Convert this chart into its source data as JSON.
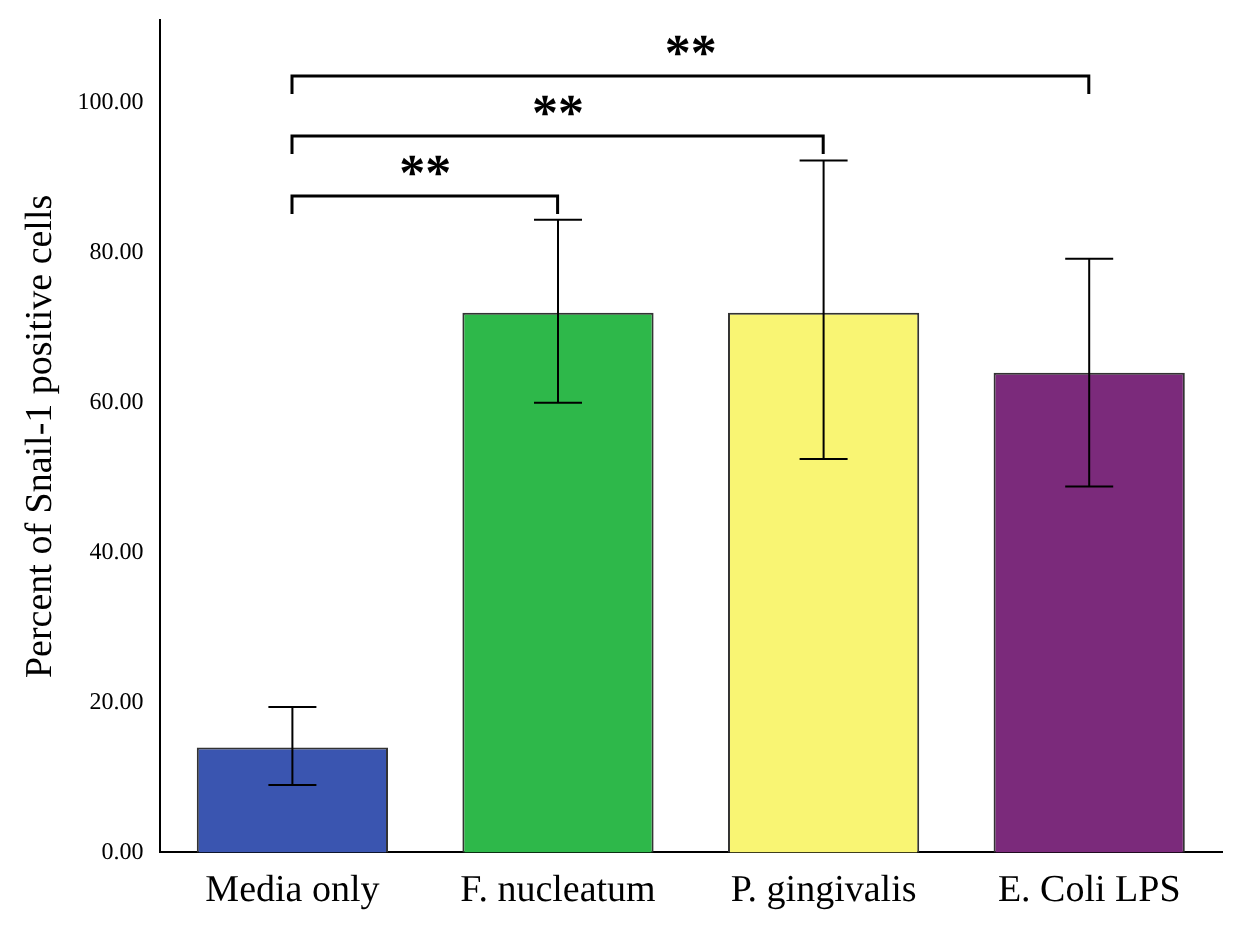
{
  "chart_data": {
    "type": "bar",
    "ylabel": "Percent of Snail-1 positive cells",
    "categories": [
      "Media only",
      "F. nucleatum",
      "P. gingivalis",
      "E. Coli LPS"
    ],
    "values": [
      14,
      72,
      72,
      64
    ],
    "colors": [
      "#3a55b0",
      "#2eb84a",
      "#f9f573",
      "#7b2a7b"
    ],
    "errors": [
      [
        9,
        19.4
      ],
      [
        60,
        84.4
      ],
      [
        52.5,
        92.3
      ],
      [
        48.8,
        79.2
      ]
    ],
    "ylim": [
      0,
      111
    ],
    "yticks": [
      {
        "value": 0,
        "label": "0.00"
      },
      {
        "value": 20,
        "label": "20.00"
      },
      {
        "value": 40,
        "label": "40.00"
      },
      {
        "value": 60,
        "label": "60.00"
      },
      {
        "value": 80,
        "label": "80.00"
      },
      {
        "value": 100,
        "label": "100.00"
      }
    ],
    "grid": false,
    "legend": false,
    "annotations": [
      "**",
      "**",
      "**"
    ]
  }
}
